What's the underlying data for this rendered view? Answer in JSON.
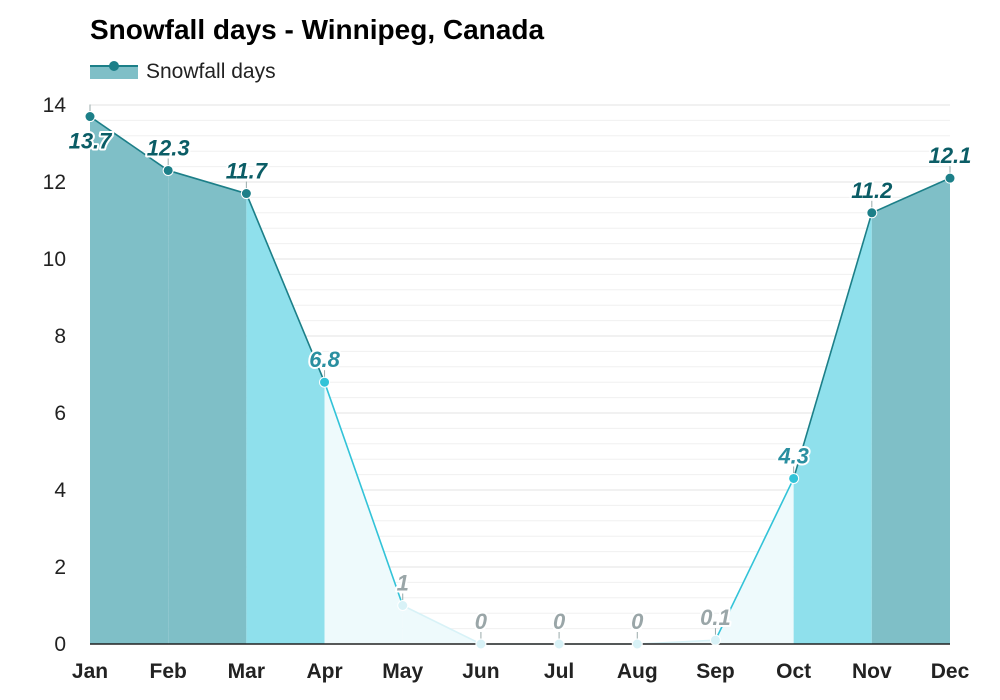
{
  "chart_data": {
    "type": "area",
    "title": "Snowfall days - Winnipeg, Canada",
    "categories": [
      "Jan",
      "Feb",
      "Mar",
      "Apr",
      "May",
      "Jun",
      "Jul",
      "Aug",
      "Sep",
      "Oct",
      "Nov",
      "Dec"
    ],
    "series": [
      {
        "name": "Snowfall days",
        "values": [
          13.7,
          12.3,
          11.7,
          6.8,
          1,
          0,
          0,
          0,
          0.1,
          4.3,
          11.2,
          12.1
        ]
      }
    ],
    "data_labels": [
      "13.7",
      "12.3",
      "11.7",
      "6.8",
      "1",
      "0",
      "0",
      "0",
      "0.1",
      "4.3",
      "11.2",
      "12.1"
    ],
    "y_ticks": [
      0,
      2,
      4,
      6,
      8,
      10,
      12,
      14
    ],
    "ylim": [
      0,
      14
    ],
    "xlabel": "",
    "ylabel": "",
    "grid": true,
    "legend_position": "top-left",
    "colors": {
      "high_fill": "#7fbfc7",
      "high_line": "#1c7f88",
      "high_label": "#0b5d66",
      "mid_fill": "#8fe0ec",
      "mid_line": "#32c3d8",
      "mid_label": "#2a8fa0",
      "low_fill": "#eefafc",
      "low_line": "#d8f2f7",
      "low_label": "#9aa6a8",
      "grid": "#e3e3e3"
    }
  }
}
